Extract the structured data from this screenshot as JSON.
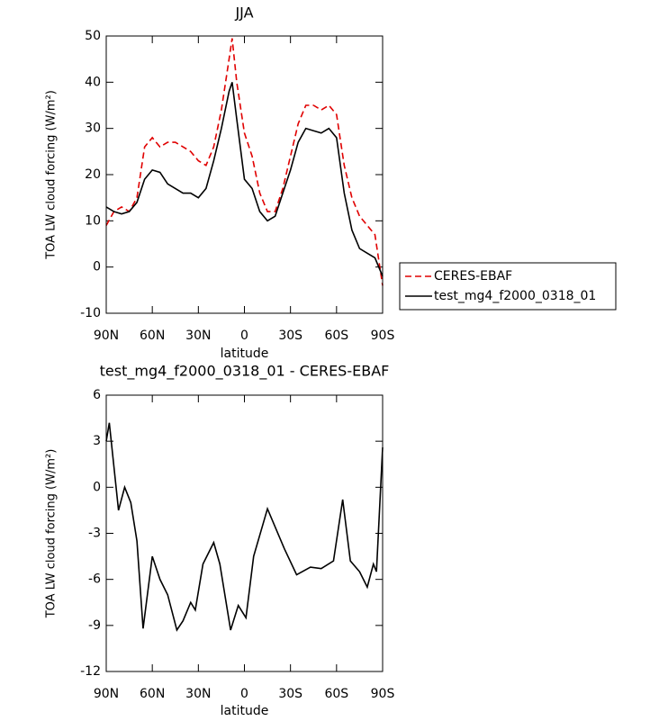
{
  "chart_data": [
    {
      "type": "line",
      "title": "JJA",
      "xlabel": "latitude",
      "ylabel": "TOA LW cloud forcing (W/m²)",
      "x": [
        90,
        85,
        80,
        75,
        70,
        65,
        60,
        55,
        50,
        45,
        40,
        35,
        30,
        25,
        20,
        15,
        10,
        8,
        5,
        0,
        -5,
        -10,
        -15,
        -20,
        -25,
        -30,
        -35,
        -40,
        -45,
        -50,
        -55,
        -60,
        -65,
        -70,
        -75,
        -80,
        -85,
        -90
      ],
      "series": [
        {
          "name": "CERES-EBAF",
          "color": "#e00000",
          "dashed": true,
          "values": [
            9,
            12,
            13,
            12,
            15,
            26,
            28,
            26,
            27,
            27,
            26,
            25,
            23,
            22,
            26,
            34,
            45,
            49.5,
            40,
            29,
            24,
            16,
            12,
            12,
            17,
            24,
            31,
            35,
            35,
            34,
            35,
            33,
            22,
            15,
            11,
            9,
            7,
            -4
          ]
        },
        {
          "name": "test_mg4_f2000_0318_01",
          "color": "#000000",
          "dashed": false,
          "values": [
            13,
            12,
            11.5,
            12,
            14,
            19,
            21,
            20.5,
            18,
            17,
            16,
            16,
            15,
            17,
            23,
            30,
            38,
            40,
            32,
            19,
            17,
            12,
            10,
            11,
            16,
            21,
            27,
            30,
            29.5,
            29,
            30,
            28,
            16,
            8,
            4,
            3,
            2,
            -2
          ]
        }
      ],
      "xlim": [
        90,
        -90
      ],
      "xticks": [
        {
          "value": 90,
          "label": "90N"
        },
        {
          "value": 60,
          "label": "60N"
        },
        {
          "value": 30,
          "label": "30N"
        },
        0,
        {
          "value": -30,
          "label": "30S"
        },
        {
          "value": -60,
          "label": "60S"
        },
        {
          "value": -90,
          "label": "90S"
        }
      ],
      "ylim": [
        -10,
        50
      ],
      "yticks": [
        -10,
        0,
        10,
        20,
        30,
        40,
        50
      ],
      "legend": "right"
    },
    {
      "type": "line",
      "title": "test_mg4_f2000_0318_01 - CERES-EBAF",
      "xlabel": "latitude",
      "ylabel": "TOA LW cloud forcing (W/m²)",
      "x": [
        90,
        88,
        82,
        78,
        74,
        70,
        66,
        60,
        55,
        50,
        44,
        40,
        35,
        32,
        27,
        20,
        16,
        9,
        4,
        -1,
        -6,
        -15,
        -26,
        -34,
        -43,
        -50,
        -58,
        -64,
        -69,
        -75,
        -80,
        -84,
        -86,
        -90
      ],
      "series": [
        {
          "color": "#000000",
          "dashed": false,
          "values": [
            3,
            4.2,
            -1.5,
            0,
            -1,
            -3.5,
            -9.2,
            -4.5,
            -6,
            -7,
            -9.3,
            -8.7,
            -7.5,
            -8,
            -5,
            -3.6,
            -5,
            -9.3,
            -7.7,
            -8.5,
            -4.5,
            -1.4,
            -4,
            -5.7,
            -5.2,
            -5.3,
            -4.8,
            -0.8,
            -4.8,
            -5.5,
            -6.5,
            -5,
            -5.5,
            2.6
          ]
        }
      ],
      "xlim": [
        90,
        -90
      ],
      "xticks": [
        {
          "value": 90,
          "label": "90N"
        },
        {
          "value": 60,
          "label": "60N"
        },
        {
          "value": 30,
          "label": "30N"
        },
        0,
        {
          "value": -30,
          "label": "30S"
        },
        {
          "value": -60,
          "label": "60S"
        },
        {
          "value": -90,
          "label": "90S"
        }
      ],
      "ylim": [
        -12,
        6
      ],
      "yticks": [
        -12,
        -9,
        -6,
        -3,
        0,
        3,
        6
      ]
    }
  ]
}
